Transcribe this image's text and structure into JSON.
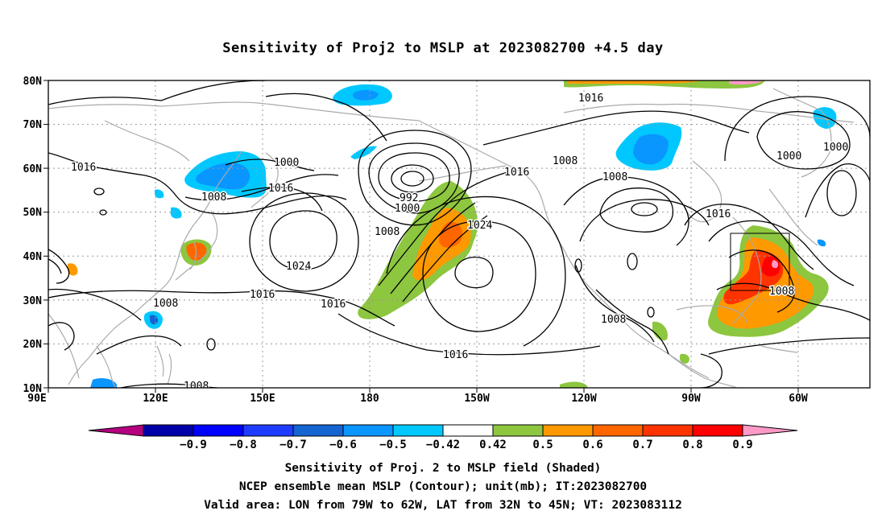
{
  "title": "Sensitivity of Proj2 to MSLP at 2023082700 +4.5 day",
  "map": {
    "lat_labels": [
      "80N",
      "70N",
      "60N",
      "50N",
      "40N",
      "30N",
      "20N",
      "10N"
    ],
    "lon_labels": [
      "90E",
      "120E",
      "150E",
      "180",
      "150W",
      "120W",
      "90W",
      "60W"
    ],
    "lon_range": "90E to 50W",
    "lat_range": "10N to 80N",
    "grid": "dotted, every 30 degrees longitude and 10 degrees latitude",
    "contour_color": "#000000",
    "coastline_color": "#aaaaaa",
    "valid_area_box": {
      "lon": [
        "79W",
        "62W"
      ],
      "lat": [
        "32N",
        "45N"
      ]
    }
  },
  "contour_labels": [
    {
      "id": "c1",
      "text": "1016"
    },
    {
      "id": "c2",
      "text": "1000"
    },
    {
      "id": "c3",
      "text": "1008"
    },
    {
      "id": "c4",
      "text": "1016"
    },
    {
      "id": "c5",
      "text": "992"
    },
    {
      "id": "c6",
      "text": "1000"
    },
    {
      "id": "c7",
      "text": "1008"
    },
    {
      "id": "c8",
      "text": "1024"
    },
    {
      "id": "c9",
      "text": "1024"
    },
    {
      "id": "c10",
      "text": "1016"
    },
    {
      "id": "c11",
      "text": "1016"
    },
    {
      "id": "c12",
      "text": "1008"
    },
    {
      "id": "c13",
      "text": "1008"
    },
    {
      "id": "c14",
      "text": "1016"
    },
    {
      "id": "c15",
      "text": "1016"
    },
    {
      "id": "c16",
      "text": "1008"
    },
    {
      "id": "c17",
      "text": "1016"
    },
    {
      "id": "c18",
      "text": "1016"
    },
    {
      "id": "c19",
      "text": "1008"
    },
    {
      "id": "c20",
      "text": "1000"
    },
    {
      "id": "c21",
      "text": "1000"
    },
    {
      "id": "c22",
      "text": "1008"
    },
    {
      "id": "c23",
      "text": "1008"
    }
  ],
  "colorbar": {
    "colors": [
      "#b5007f",
      "#0000a8",
      "#0000ff",
      "#1e3cff",
      "#1464d2",
      "#0a96ff",
      "#00c8ff",
      "#ffffff",
      "#8dc63f",
      "#ff9900",
      "#ff6600",
      "#ff3300",
      "#ff0000",
      "#ff9ac8"
    ],
    "labels": [
      "-0.9",
      "-0.8",
      "-0.7",
      "-0.6",
      "-0.5",
      "-0.42",
      "0.42",
      "0.5",
      "0.6",
      "0.7",
      "0.8",
      "0.9"
    ]
  },
  "captions": {
    "line1": "Sensitivity of Proj. 2 to MSLP field (Shaded)",
    "line2": "NCEP ensemble mean MSLP (Contour); unit(mb); IT:2023082700",
    "line3": "Valid area: LON from 79W to 62W, LAT from 32N to 45N; VT: 2023083112"
  }
}
